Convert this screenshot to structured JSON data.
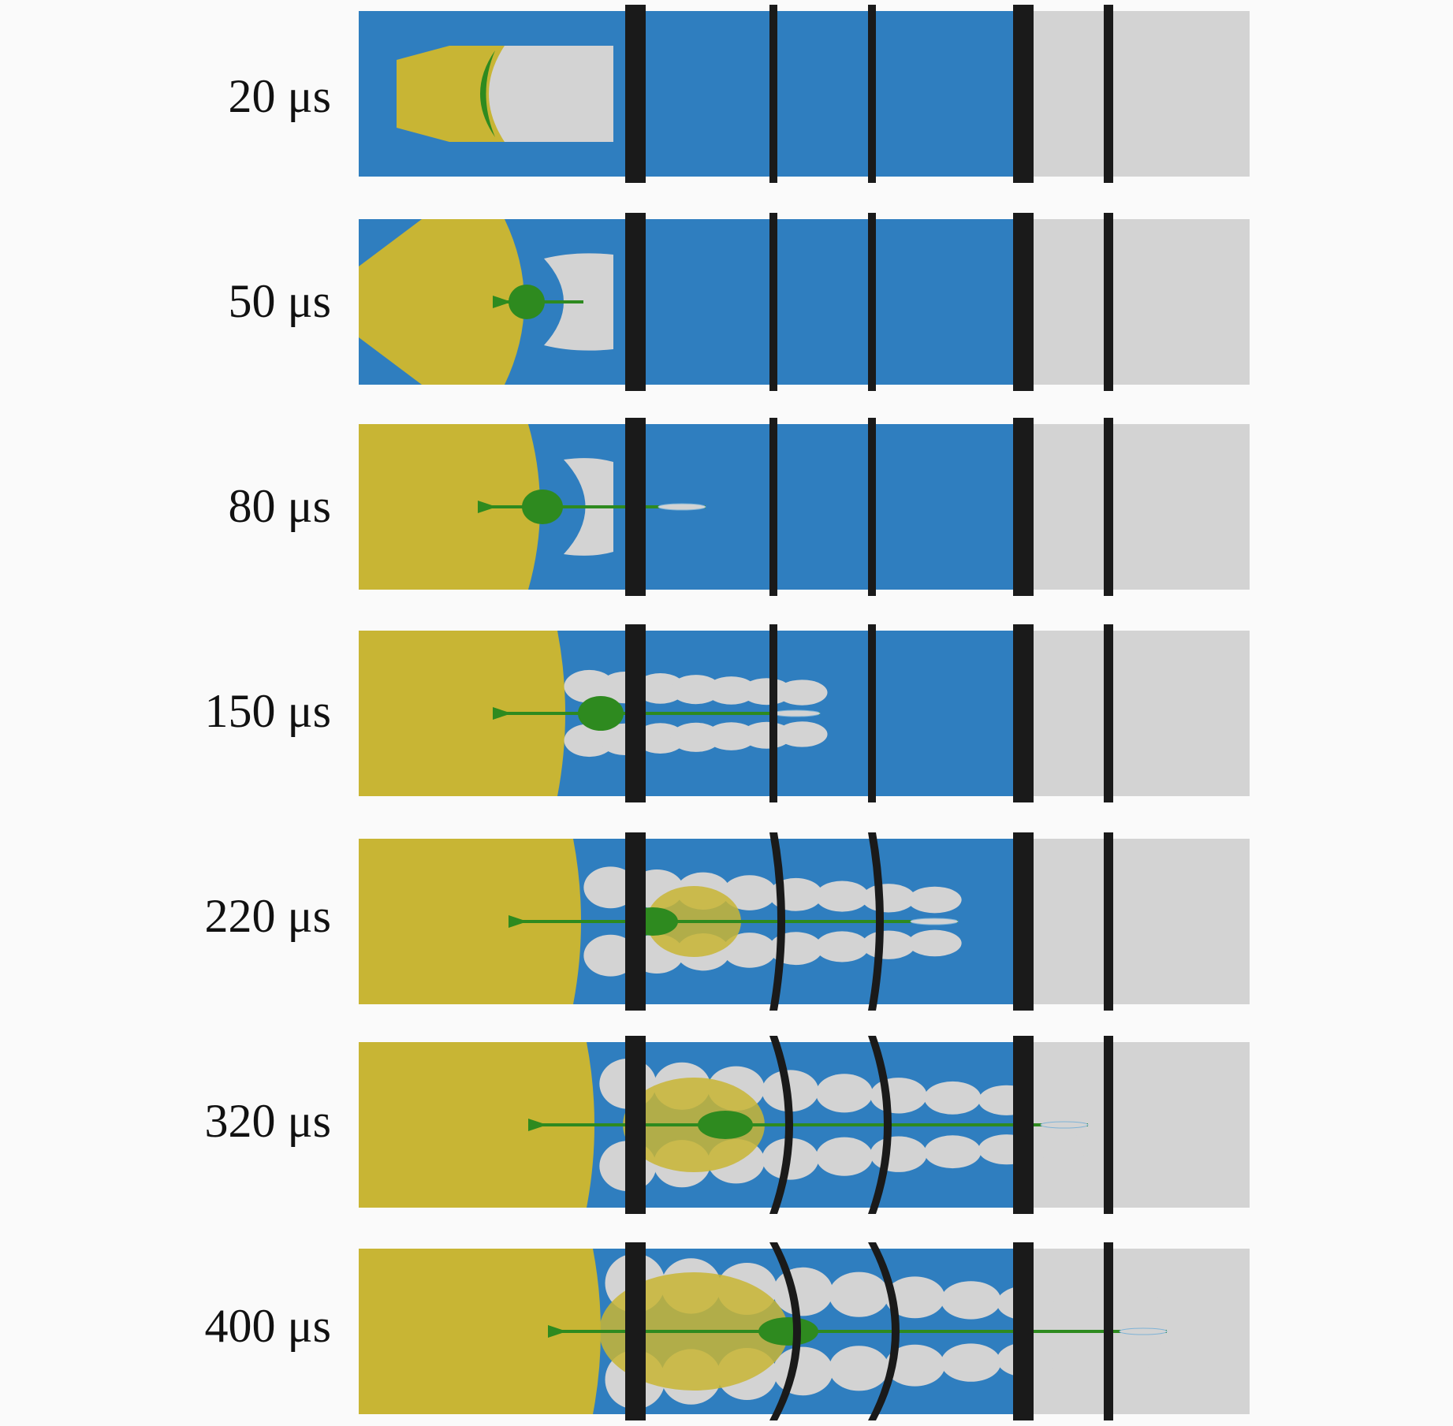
{
  "figure": {
    "colors": {
      "background": "#fafafa",
      "water": "#2f7ebf",
      "explosive_gas": "#c8b534",
      "air": "#d3d3d3",
      "jet": "#2e8a1f",
      "plate": "#1a1a1a"
    },
    "panels": [
      {
        "time_label": "20 μs"
      },
      {
        "time_label": "50 μs"
      },
      {
        "time_label": "80 μs"
      },
      {
        "time_label": "150 μs"
      },
      {
        "time_label": "220 μs"
      },
      {
        "time_label": "320 μs"
      },
      {
        "time_label": "400 μs"
      }
    ]
  }
}
